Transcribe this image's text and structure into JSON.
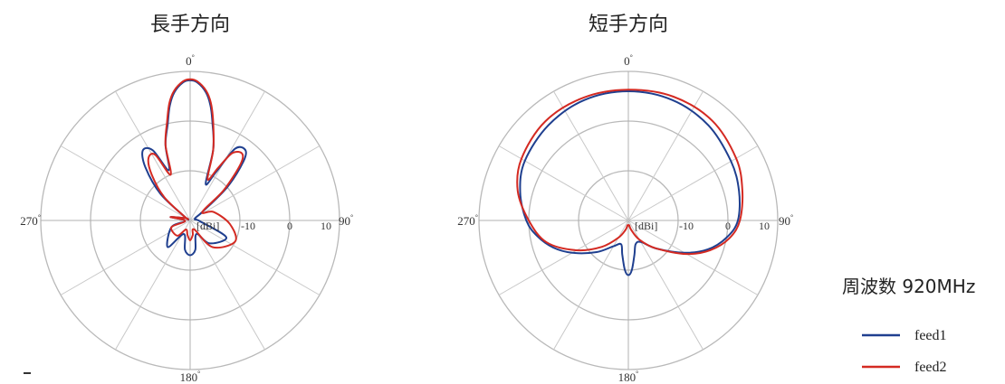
{
  "chart_data": [
    {
      "type": "polar",
      "title": "長手方向",
      "angle_labels": [
        "0",
        "90",
        "180",
        "270"
      ],
      "radial_unit_label": "[dBi]",
      "radial_tick_labels": [
        "-10",
        "0",
        "10"
      ],
      "rlim": [
        -20,
        10
      ],
      "series": [
        {
          "name": "feed1",
          "color": "#1f3f8f",
          "theta_deg": [
            -58,
            -48,
            -40,
            -34,
            -28,
            -23,
            -18,
            -13,
            -10,
            -7,
            -3,
            0,
            3,
            7,
            10,
            13,
            18,
            23,
            28,
            32,
            38,
            42,
            48,
            55,
            70,
            95,
            115,
            140,
            155,
            170,
            180,
            190,
            205,
            220,
            250,
            265,
            280,
            298
          ],
          "r_db": [
            -19,
            -12,
            -6,
            -3,
            -4,
            -9,
            -4,
            0,
            3.5,
            6,
            7.8,
            8.2,
            7.8,
            6,
            3.5,
            0,
            -5,
            -12,
            -9,
            -3,
            -2,
            -4,
            -10,
            -17,
            -19,
            -18,
            -12,
            -14,
            -17,
            -14,
            -13,
            -14,
            -17,
            -13,
            -16,
            -19,
            -16,
            -19
          ]
        },
        {
          "name": "feed2",
          "color": "#d42a22",
          "theta_deg": [
            -58,
            -48,
            -40,
            -34,
            -28,
            -23,
            -18,
            -13,
            -10,
            -7,
            -3,
            0,
            3,
            7,
            10,
            13,
            18,
            23,
            28,
            32,
            38,
            42,
            48,
            55,
            70,
            95,
            115,
            140,
            155,
            170,
            180,
            190,
            205,
            220,
            250,
            265,
            280,
            298
          ],
          "r_db": [
            -19,
            -13,
            -8,
            -5,
            -5,
            -10,
            -4,
            0.5,
            4,
            6.3,
            8,
            8.4,
            8,
            6.3,
            4,
            0.5,
            -5,
            -11,
            -8,
            -4,
            -3,
            -5,
            -11,
            -17,
            -15,
            -12,
            -10,
            -13,
            -18,
            -17,
            -16,
            -17,
            -18,
            -16,
            -16,
            -19,
            -16,
            -19
          ]
        }
      ]
    },
    {
      "type": "polar",
      "title": "短手方向",
      "angle_labels": [
        "0",
        "90",
        "180",
        "270"
      ],
      "radial_unit_label": "[dBi]",
      "radial_tick_labels": [
        "-10",
        "0",
        "10"
      ],
      "rlim": [
        -20,
        10
      ],
      "series": [
        {
          "name": "feed1",
          "color": "#1f3f8f",
          "theta_deg": [
            0,
            20,
            40,
            60,
            75,
            90,
            100,
            110,
            120,
            135,
            150,
            163,
            170,
            176,
            180,
            184,
            190,
            197,
            210,
            225,
            240,
            250,
            260,
            270,
            285,
            300,
            320,
            340
          ],
          "r_db": [
            6,
            5.8,
            5,
            3.8,
            3,
            2,
            0,
            -3,
            -7,
            -12,
            -15,
            -15,
            -13,
            -10,
            -9,
            -10,
            -13,
            -15,
            -14,
            -11,
            -7,
            -4,
            -1.5,
            0.5,
            2.5,
            4,
            5,
            5.8
          ]
        },
        {
          "name": "feed2",
          "color": "#d42a22",
          "theta_deg": [
            0,
            20,
            40,
            60,
            75,
            90,
            100,
            110,
            120,
            135,
            150,
            163,
            170,
            180,
            190,
            197,
            210,
            225,
            240,
            255,
            270,
            285,
            300,
            320,
            340
          ],
          "r_db": [
            6.3,
            6.5,
            6.2,
            5,
            3.7,
            2.4,
            0.6,
            -2.5,
            -6.5,
            -12,
            -15.5,
            -18,
            -19,
            -19,
            -19,
            -18,
            -16,
            -12.5,
            -8,
            -3,
            0,
            3,
            4.8,
            6,
            6.3
          ]
        }
      ]
    }
  ],
  "legend": {
    "frequency_label": "周波数 920MHz",
    "items": [
      {
        "label": "feed1",
        "color": "#1f3f8f"
      },
      {
        "label": "feed2",
        "color": "#d42a22"
      }
    ]
  }
}
